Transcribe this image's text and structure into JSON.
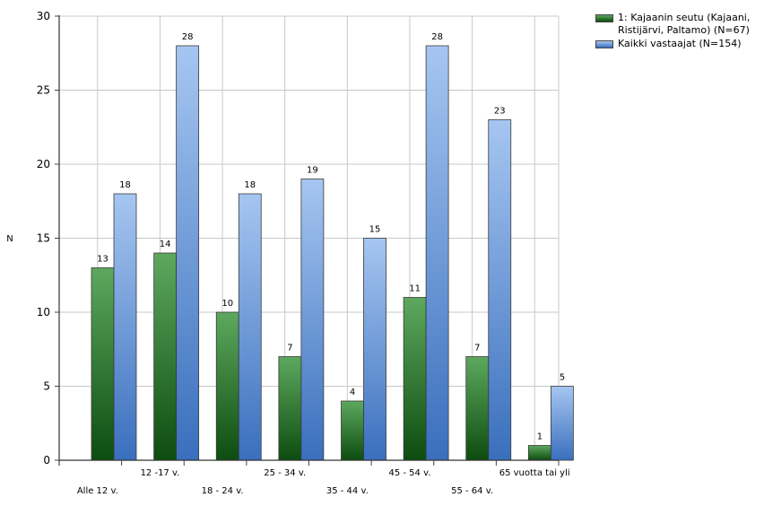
{
  "chart_data": {
    "type": "bar",
    "categories": [
      "Alle 12 v.",
      "12 -17 v.",
      "18 - 24 v.",
      "25 - 34 v.",
      "35 - 44 v.",
      "45 - 54 v.",
      "55 - 64 v.",
      "65 vuotta tai yli"
    ],
    "series": [
      {
        "name": "1: Kajaanin seutu (Kajaani, Ristijärvi, Paltamo) (N=67)",
        "values": [
          13,
          14,
          10,
          7,
          4,
          11,
          7,
          1
        ],
        "color": "#2e7d32"
      },
      {
        "name": "Kaikki vastaajat (N=154)",
        "values": [
          18,
          28,
          18,
          19,
          15,
          28,
          23,
          5
        ],
        "color": "#5b8fd6"
      }
    ],
    "title": "",
    "xlabel": "",
    "ylabel": "N",
    "ylim": [
      0,
      30
    ],
    "yticks": [
      0,
      5,
      10,
      15,
      20,
      25,
      30
    ],
    "grid": true,
    "legend": "top-right"
  }
}
